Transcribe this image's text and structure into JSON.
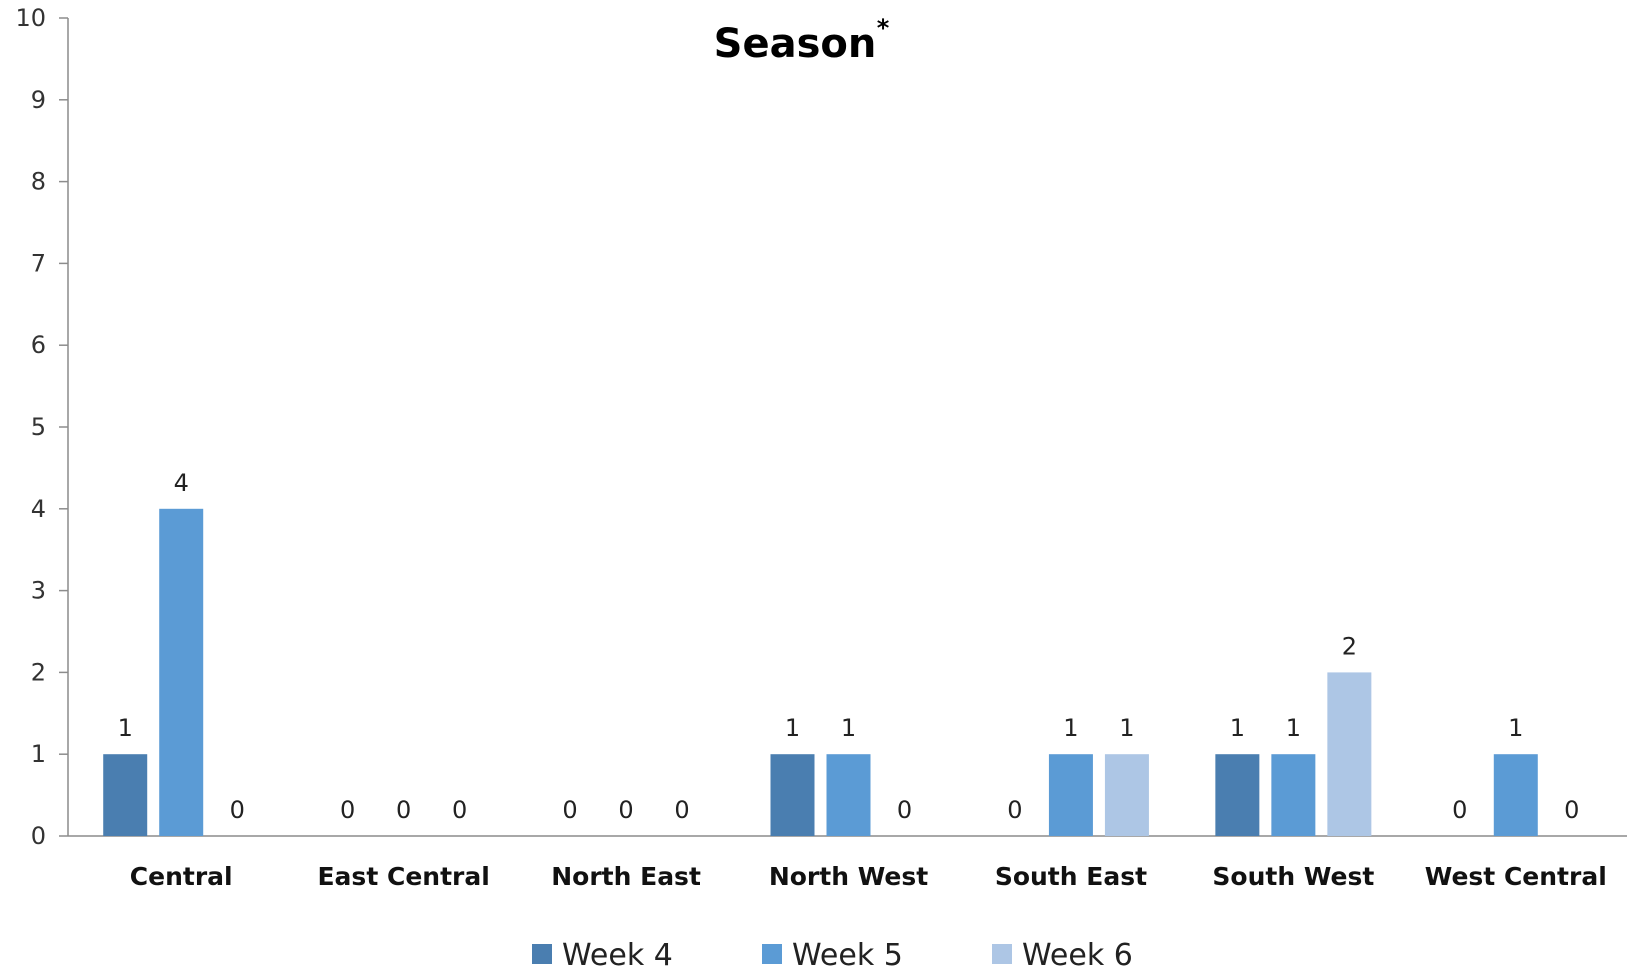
{
  "chart_data": {
    "type": "bar",
    "title": "Season",
    "title_superscript": "*",
    "categories": [
      "Central",
      "East Central",
      "North East",
      "North West",
      "South East",
      "South West",
      "West Central"
    ],
    "series": [
      {
        "name": "Week 4",
        "color": "#4a7eb0",
        "values": [
          1,
          0,
          0,
          1,
          0,
          1,
          0
        ]
      },
      {
        "name": "Week 5",
        "color": "#5b9bd5",
        "values": [
          4,
          0,
          0,
          1,
          1,
          1,
          1
        ]
      },
      {
        "name": "Week 6",
        "color": "#adc6e5",
        "values": [
          0,
          0,
          0,
          0,
          1,
          2,
          0
        ]
      }
    ],
    "ylim": [
      0,
      10
    ],
    "yticks": [
      0,
      1,
      2,
      3,
      4,
      5,
      6,
      7,
      8,
      9,
      10
    ],
    "grid": false,
    "legend_position": "bottom",
    "xlabel": "",
    "ylabel": ""
  }
}
